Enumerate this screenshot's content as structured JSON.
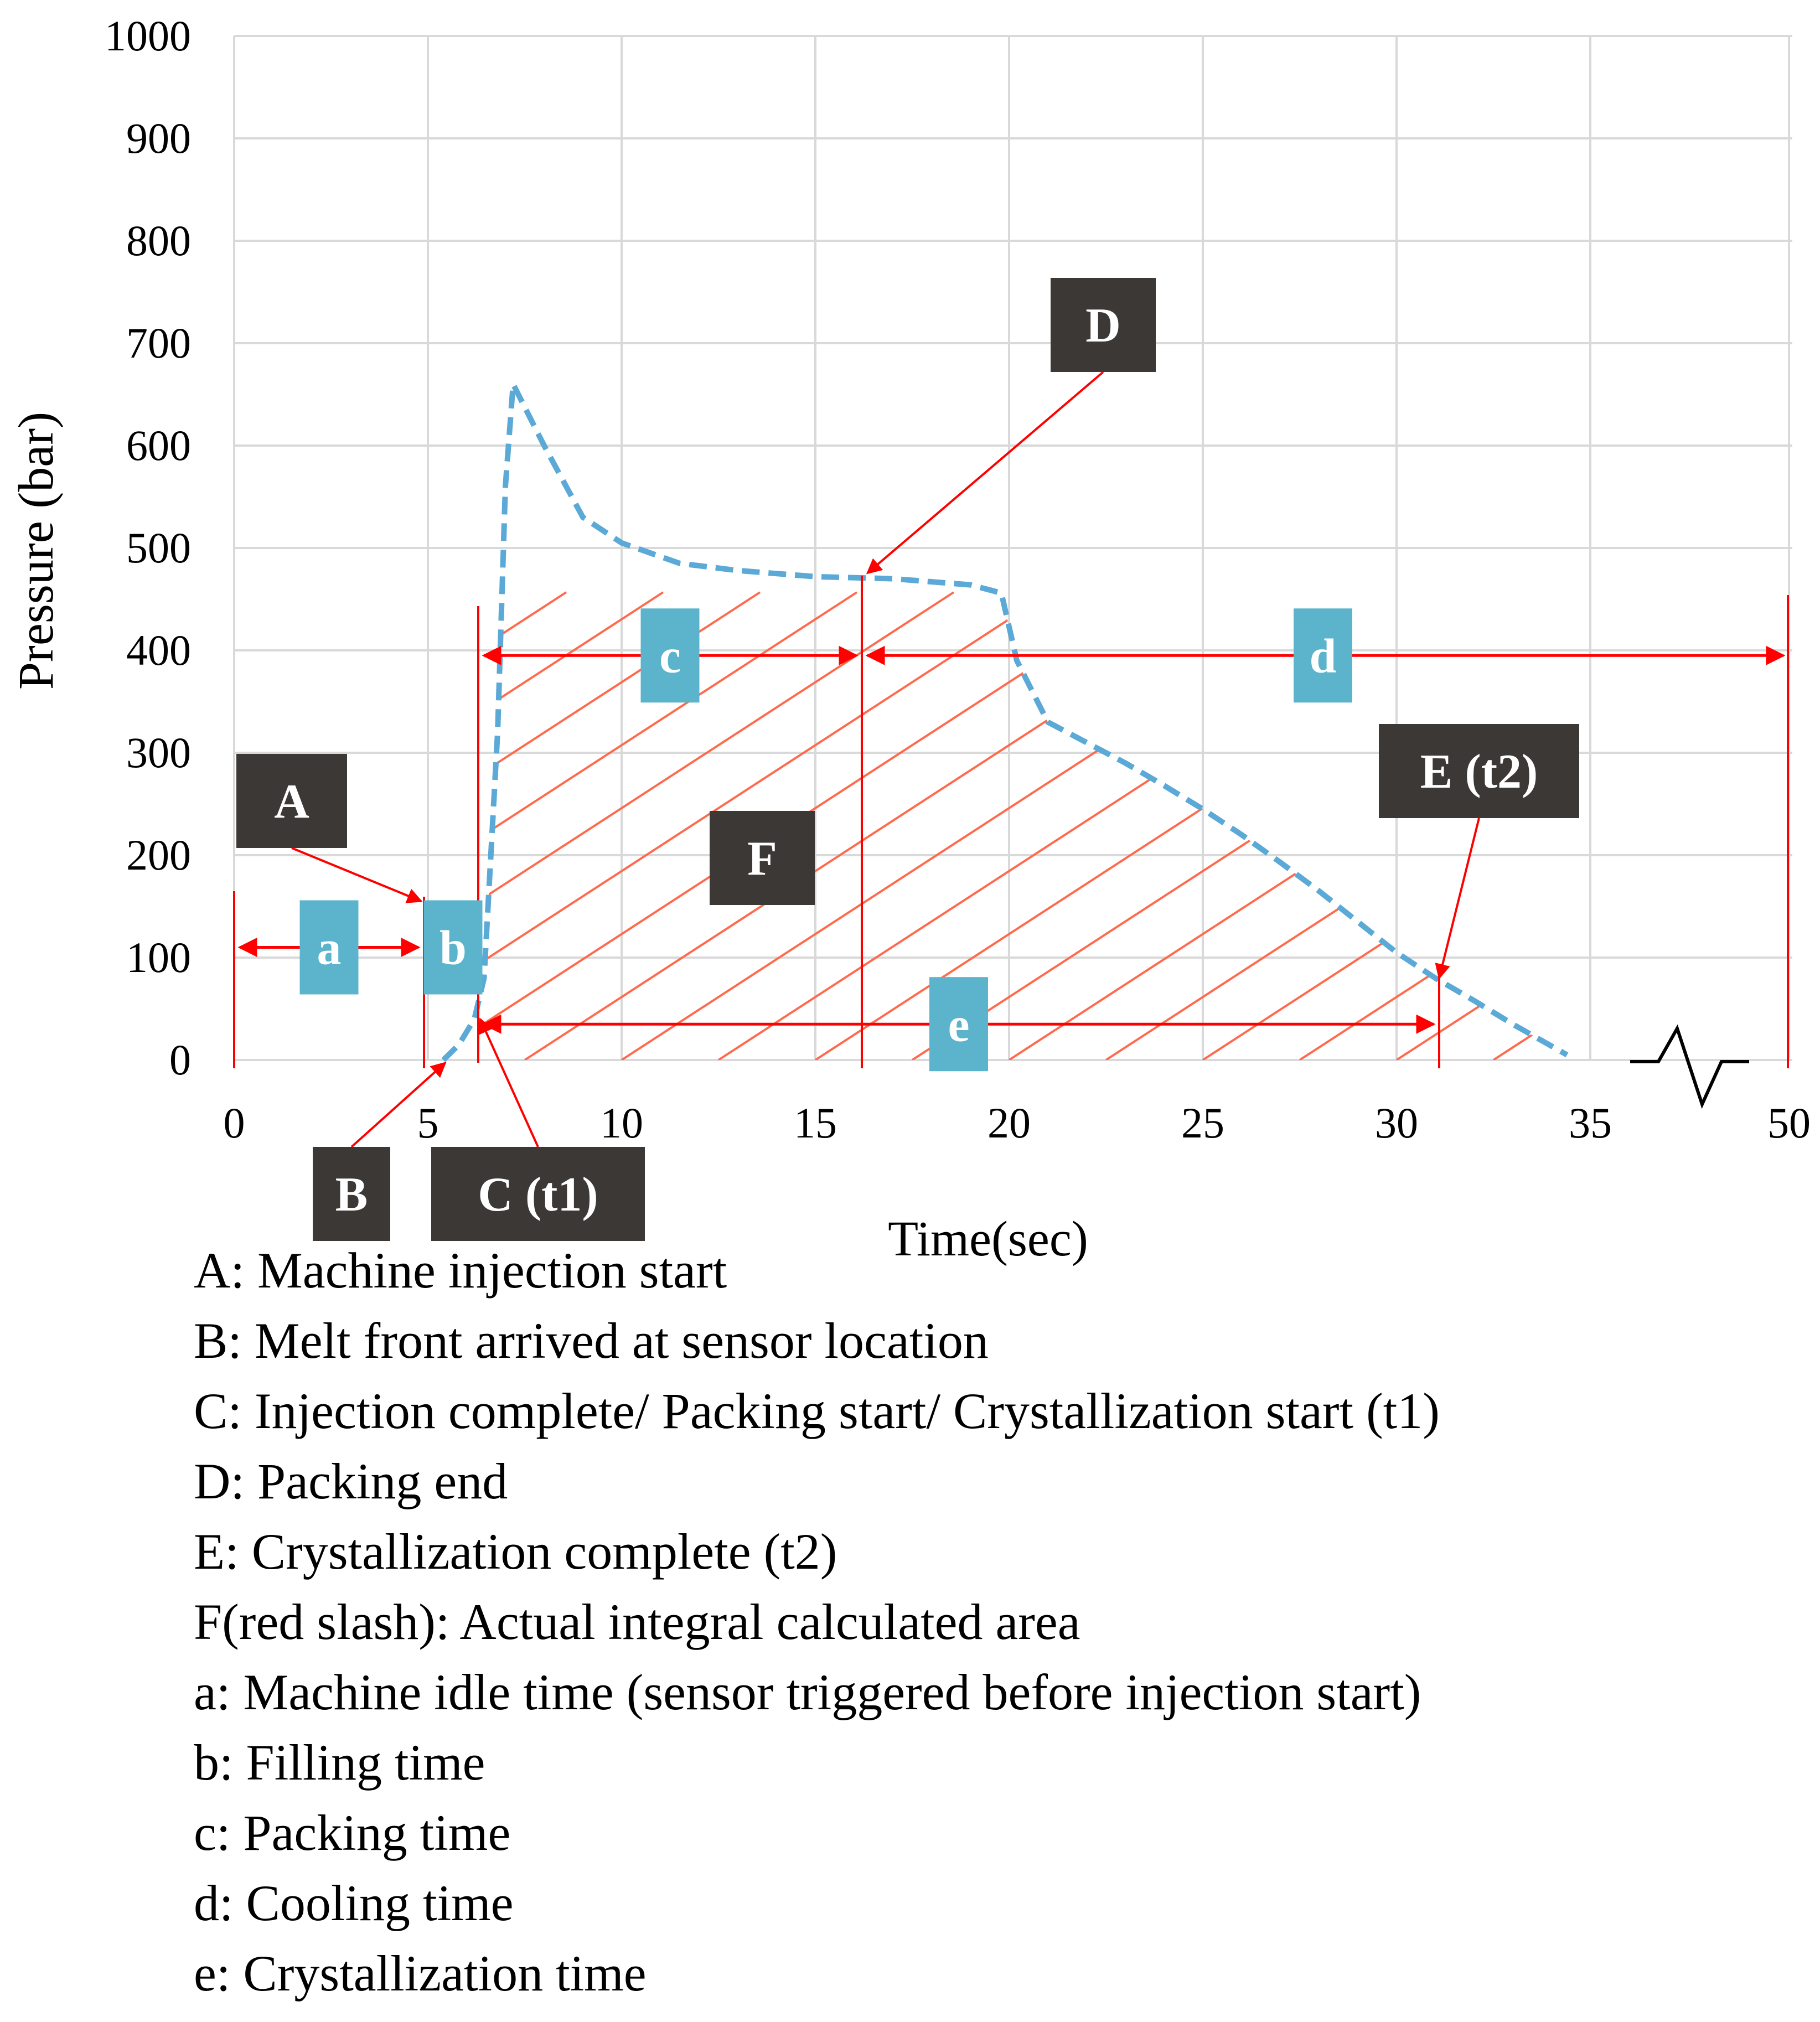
{
  "chart_data": {
    "type": "line",
    "xlabel": "Time(sec)",
    "ylabel": "Pressure (bar)",
    "x_ticks": [
      "0",
      "5",
      "10",
      "15",
      "20",
      "25",
      "30",
      "35",
      "50"
    ],
    "y_ticks": [
      "0",
      "100",
      "200",
      "300",
      "400",
      "500",
      "600",
      "700",
      "800",
      "900",
      "1000"
    ],
    "ylim": [
      0,
      1000
    ],
    "xlim": [
      0,
      40
    ],
    "x_axis_break": "between 35 and 50",
    "grid": true,
    "series": [
      {
        "color": "#5aa9d6",
        "style": "dashed",
        "x": [
          5.4,
          5.8,
          6.2,
          6.45,
          6.8,
          7.0,
          7.2,
          8.0,
          9.0,
          10.0,
          11.5,
          13.0,
          15.0,
          17.0,
          19.0,
          19.8,
          20.2,
          21.0,
          22.0,
          23.0,
          24.0,
          25.0,
          26.0,
          27.0,
          28.0,
          29.0,
          30.0,
          31.0,
          32.0,
          33.0,
          34.4
        ],
        "y": [
          0,
          15,
          40,
          80,
          320,
          560,
          660,
          600,
          530,
          505,
          485,
          478,
          472,
          470,
          464,
          456,
          390,
          330,
          310,
          290,
          268,
          245,
          220,
          193,
          165,
          135,
          105,
          80,
          58,
          35,
          5
        ]
      }
    ],
    "shaded_area": {
      "label": "F",
      "color": "#ff6a4d",
      "pattern": "diagonal slash",
      "from_x": 6.3,
      "to_x": 34.4
    },
    "point_labels": [
      {
        "label": "A",
        "x": 4.9,
        "y": 155
      },
      {
        "label": "B",
        "x": 5.4,
        "y": 0
      },
      {
        "label": "C  (t1)",
        "x": 6.35,
        "y": 40
      },
      {
        "label": "D",
        "x": 16.2,
        "y": 470
      },
      {
        "label": "E (t2)",
        "x": 31.1,
        "y": 80
      },
      {
        "label": "F",
        "x": 13.7,
        "y": 195
      }
    ],
    "intervals": [
      {
        "label": "a",
        "from": 0,
        "to": 4.9,
        "y": 110
      },
      {
        "label": "b",
        "from": 4.9,
        "to": 6.3,
        "y": 110
      },
      {
        "label": "c",
        "from": 6.3,
        "to": 16.2,
        "y": 395
      },
      {
        "label": "d",
        "from": 16.2,
        "to": 50,
        "y": 395
      },
      {
        "label": "e",
        "from": 6.3,
        "to": 31.1,
        "y": 35
      }
    ]
  },
  "legend": {
    "items": [
      "A: Machine injection start",
      "B: Melt front arrived at sensor location",
      "C: Injection complete/ Packing start/ Crystallization start (t1)",
      "D: Packing end",
      "E: Crystallization complete (t2)",
      "F(red slash): Actual integral calculated area",
      "a: Machine idle time (sensor triggered before injection start)",
      "b: Filling time",
      "c: Packing time",
      "d: Cooling time",
      "e: Crystallization time"
    ]
  },
  "colors": {
    "curve": "#5aa9d6",
    "hatch": "#ff6a4d",
    "marker": "#ff0000",
    "dark_box": "#3b3836",
    "blue_box": "#5bb4cc",
    "grid": "#d9d9d9"
  }
}
